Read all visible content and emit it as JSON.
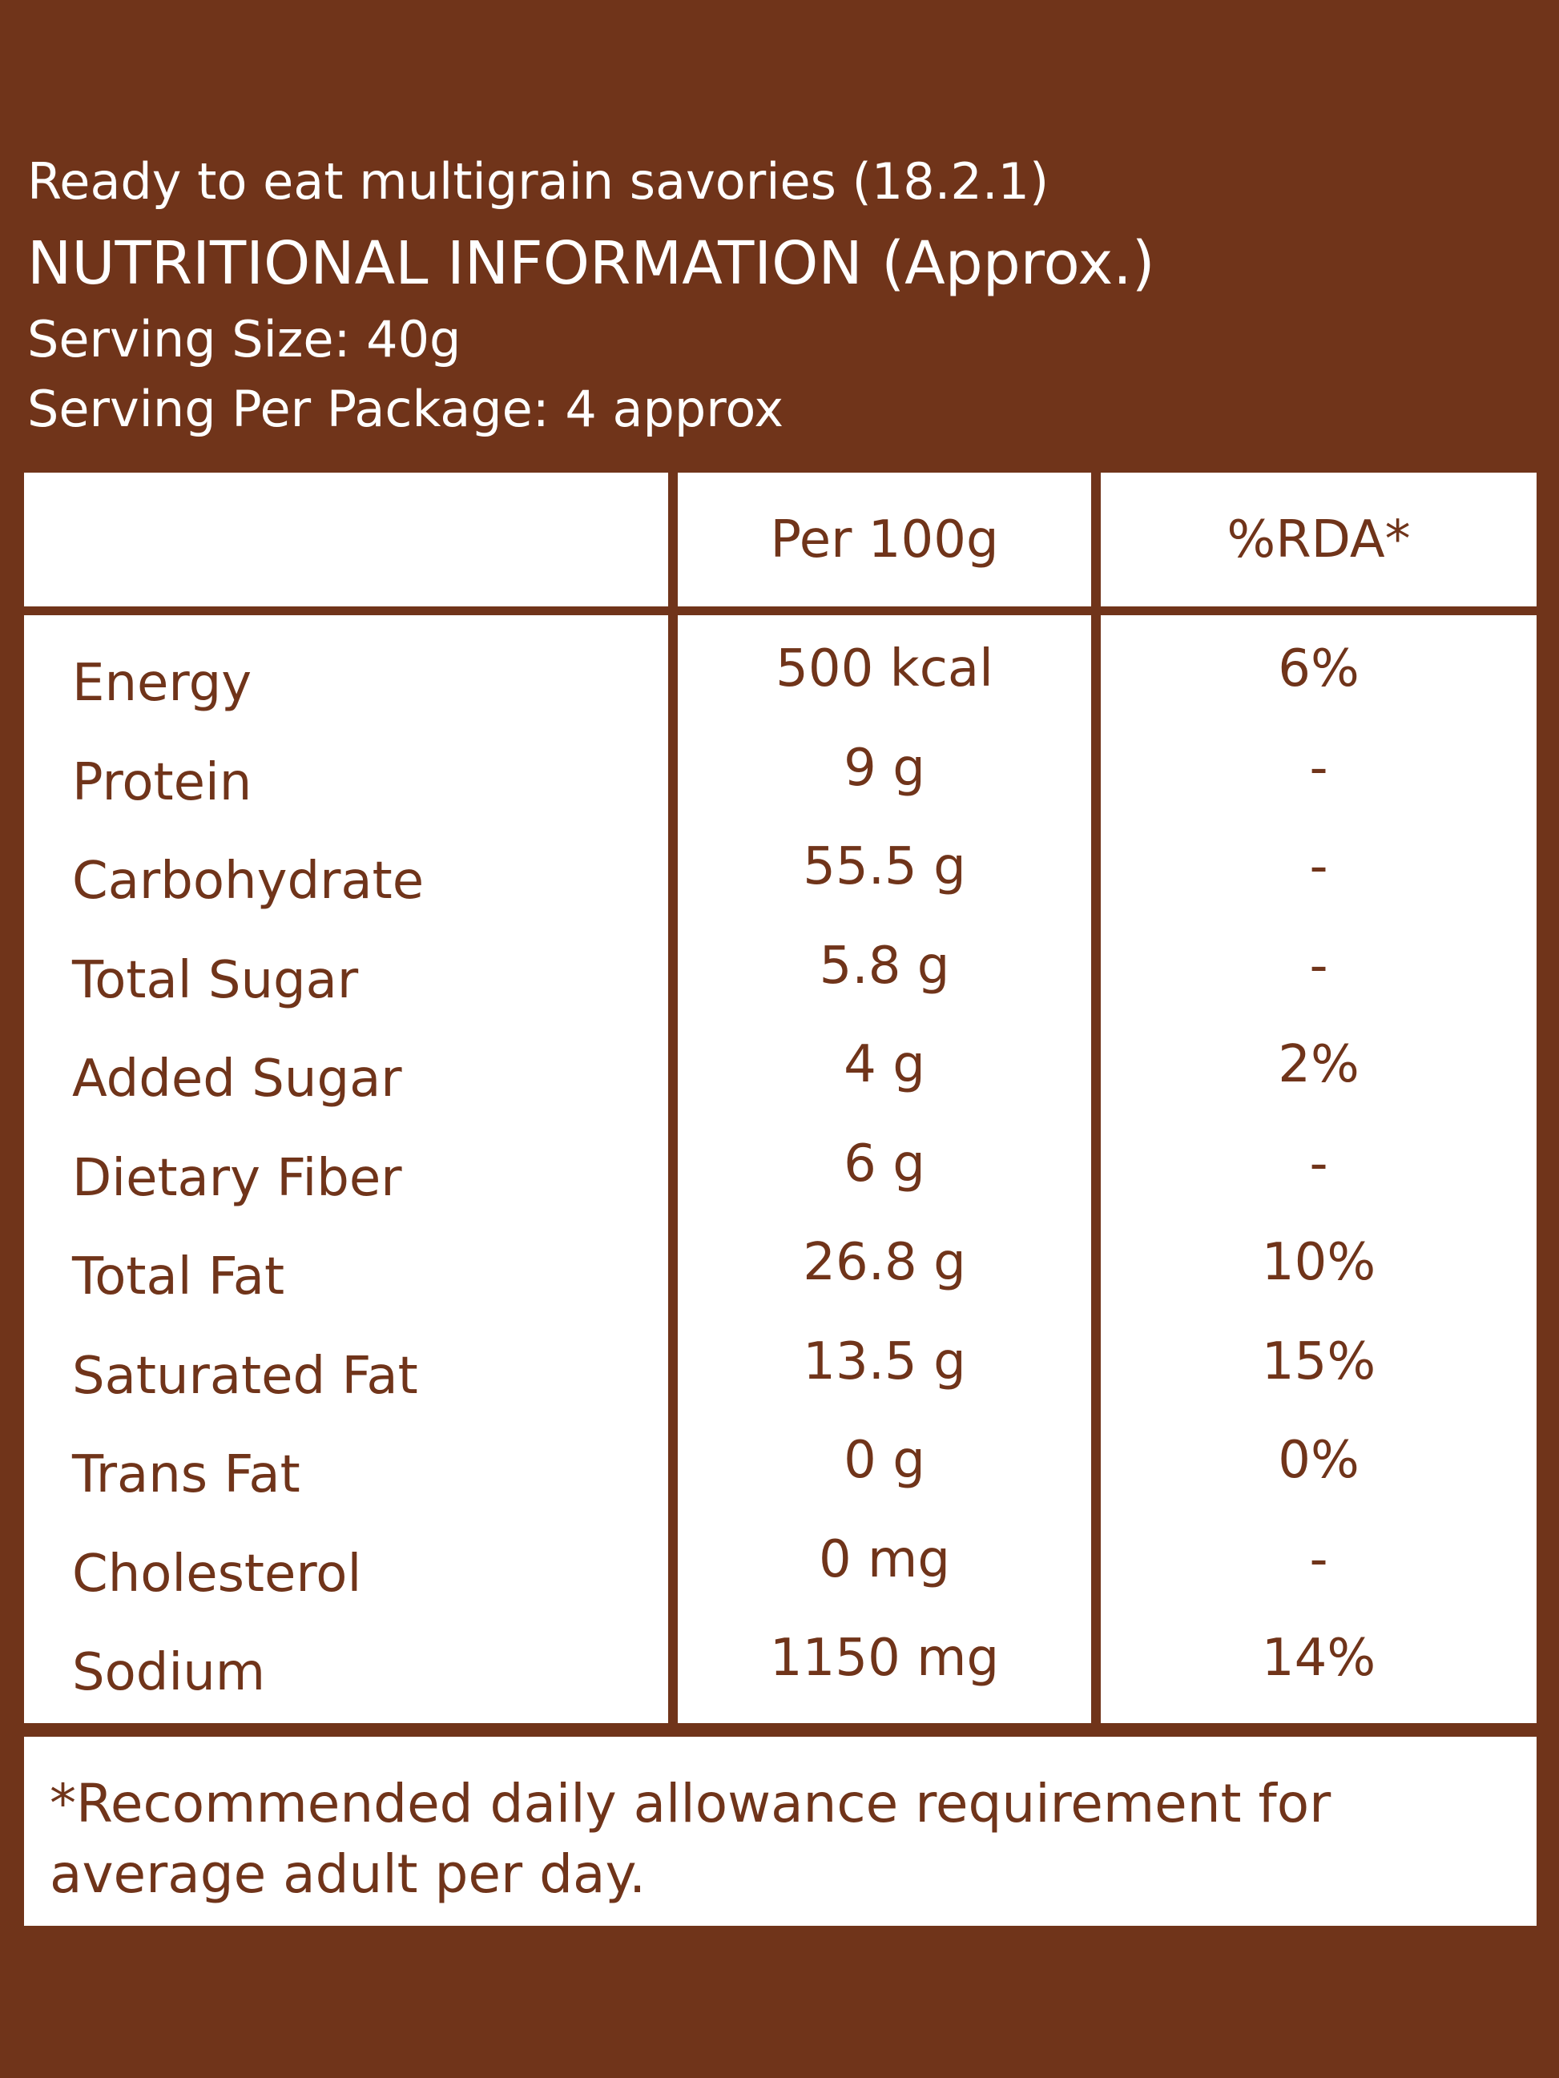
{
  "header": {
    "product": "Ready to eat multigrain savories (18.2.1)",
    "title": "NUTRITIONAL INFORMATION (Approx.)",
    "serving_size": "Serving Size: 40g",
    "serving_per_package": "Serving Per Package:  4 approx"
  },
  "table": {
    "columns": [
      "",
      "Per 100g",
      "%RDA*"
    ],
    "rows": [
      {
        "nutrient": "Energy",
        "amount": "500 kcal",
        "rda": "6%"
      },
      {
        "nutrient": "Protein",
        "amount": "9 g",
        "rda": "-"
      },
      {
        "nutrient": "Carbohydrate",
        "amount": "55.5 g",
        "rda": "-"
      },
      {
        "nutrient": "Total Sugar",
        "amount": "5.8 g",
        "rda": "-"
      },
      {
        "nutrient": "Added Sugar",
        "amount": "4 g",
        "rda": "2%"
      },
      {
        "nutrient": "Dietary Fiber",
        "amount": "6 g",
        "rda": "-"
      },
      {
        "nutrient": "Total Fat",
        "amount": "26.8 g",
        "rda": "10%"
      },
      {
        "nutrient": "Saturated Fat",
        "amount": "13.5 g",
        "rda": "15%"
      },
      {
        "nutrient": "Trans Fat",
        "amount": "0 g",
        "rda": "0%"
      },
      {
        "nutrient": "Cholesterol",
        "amount": "0 mg",
        "rda": "-"
      },
      {
        "nutrient": "Sodium",
        "amount": "1150 mg",
        "rda": "14%"
      }
    ]
  },
  "footnote": "*Recommended daily allowance requirement for average adult per day.",
  "colors": {
    "background": "#70341a",
    "panel": "#ffffff",
    "text_dark": "#70341a",
    "text_light": "#ffffff"
  }
}
